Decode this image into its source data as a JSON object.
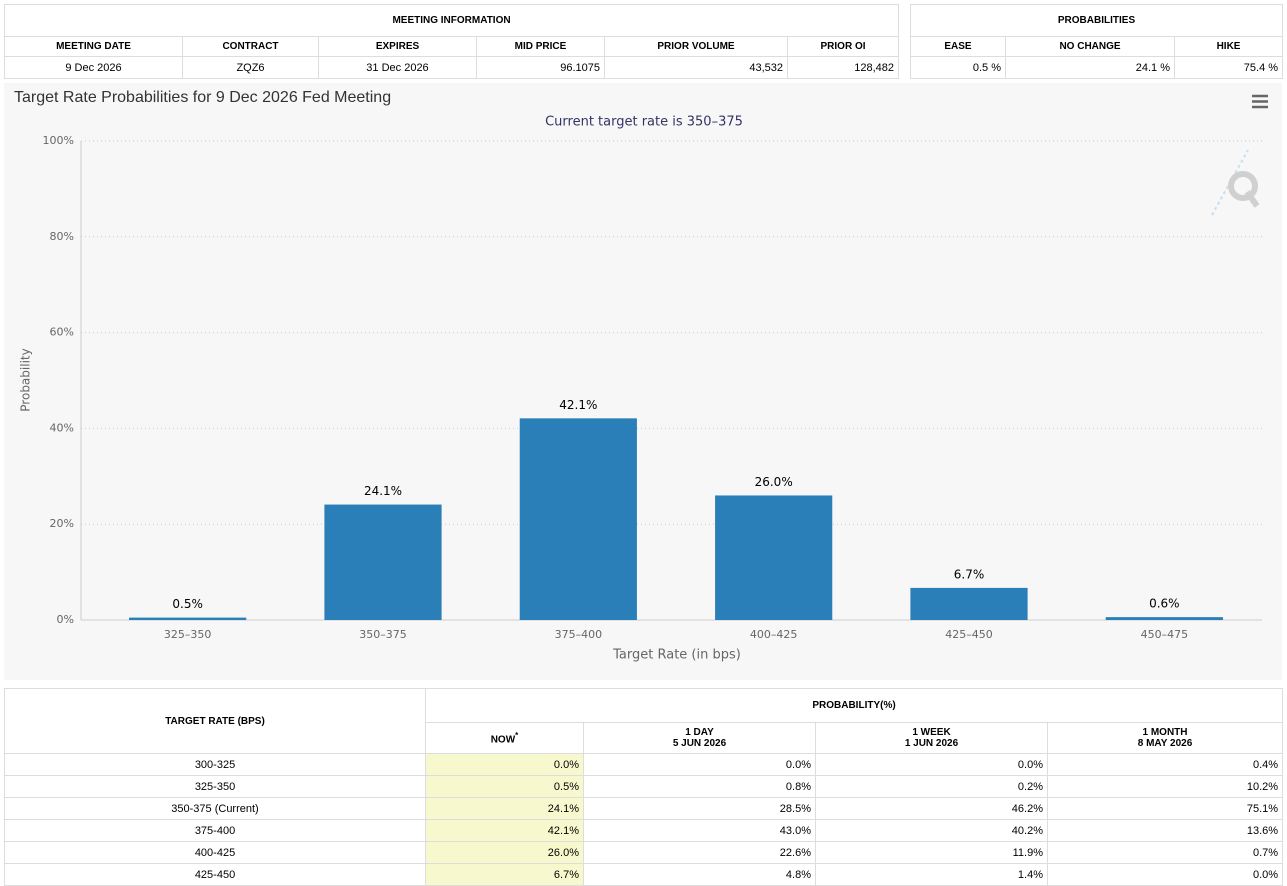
{
  "meeting_info": {
    "title": "MEETING INFORMATION",
    "headers": [
      "MEETING DATE",
      "CONTRACT",
      "EXPIRES",
      "MID PRICE",
      "PRIOR VOLUME",
      "PRIOR OI"
    ],
    "row": [
      "9 Dec 2026",
      "ZQZ6",
      "31 Dec 2026",
      "96.1075",
      "43,532",
      "128,482"
    ]
  },
  "probabilities": {
    "title": "PROBABILITIES",
    "headers": [
      "EASE",
      "NO CHANGE",
      "HIKE"
    ],
    "row": [
      "0.5 %",
      "24.1 %",
      "75.4 %"
    ]
  },
  "chart_data": {
    "type": "bar",
    "title": "Target Rate Probabilities for 9 Dec 2026 Fed Meeting",
    "subtitle": "Current target rate is 350–375",
    "x_label": "Target Rate (in bps)",
    "y_label": "Probability",
    "categories": [
      "325–350",
      "350–375",
      "375–400",
      "400–425",
      "425–450",
      "450–475"
    ],
    "values": [
      0.5,
      24.1,
      42.1,
      26.0,
      6.7,
      0.6
    ],
    "value_labels": [
      "0.5%",
      "24.1%",
      "42.1%",
      "26.0%",
      "6.7%",
      "0.6%"
    ],
    "color": "#2b7fb8",
    "ylim": [
      0,
      100
    ],
    "yticks": [
      {
        "value": 0,
        "label": "0%"
      },
      {
        "value": 20,
        "label": "20%"
      },
      {
        "value": 40,
        "label": "40%"
      },
      {
        "value": 60,
        "label": "60%"
      },
      {
        "value": 80,
        "label": "80%"
      },
      {
        "value": 100,
        "label": "100%"
      }
    ],
    "grid": true
  },
  "rate_table": {
    "first_header": "TARGET RATE (BPS)",
    "group_header": "PROBABILITY(%)",
    "now": {
      "label": "NOW",
      "note": "*"
    },
    "columns": [
      {
        "label": "1 DAY",
        "date": "5 JUN 2026"
      },
      {
        "label": "1 WEEK",
        "date": "1 JUN 2026"
      },
      {
        "label": "1 MONTH",
        "date": "8 MAY 2026"
      }
    ],
    "rows": [
      [
        "300-325",
        "0.0%",
        "0.0%",
        "0.0%",
        "0.4%"
      ],
      [
        "325-350",
        "0.5%",
        "0.8%",
        "0.2%",
        "10.2%"
      ],
      [
        "350-375 (Current)",
        "24.1%",
        "28.5%",
        "46.2%",
        "75.1%"
      ],
      [
        "375-400",
        "42.1%",
        "43.0%",
        "40.2%",
        "13.6%"
      ],
      [
        "400-425",
        "26.0%",
        "22.6%",
        "11.9%",
        "0.7%"
      ],
      [
        "425-450",
        "6.7%",
        "4.8%",
        "1.4%",
        "0.0%"
      ]
    ]
  }
}
